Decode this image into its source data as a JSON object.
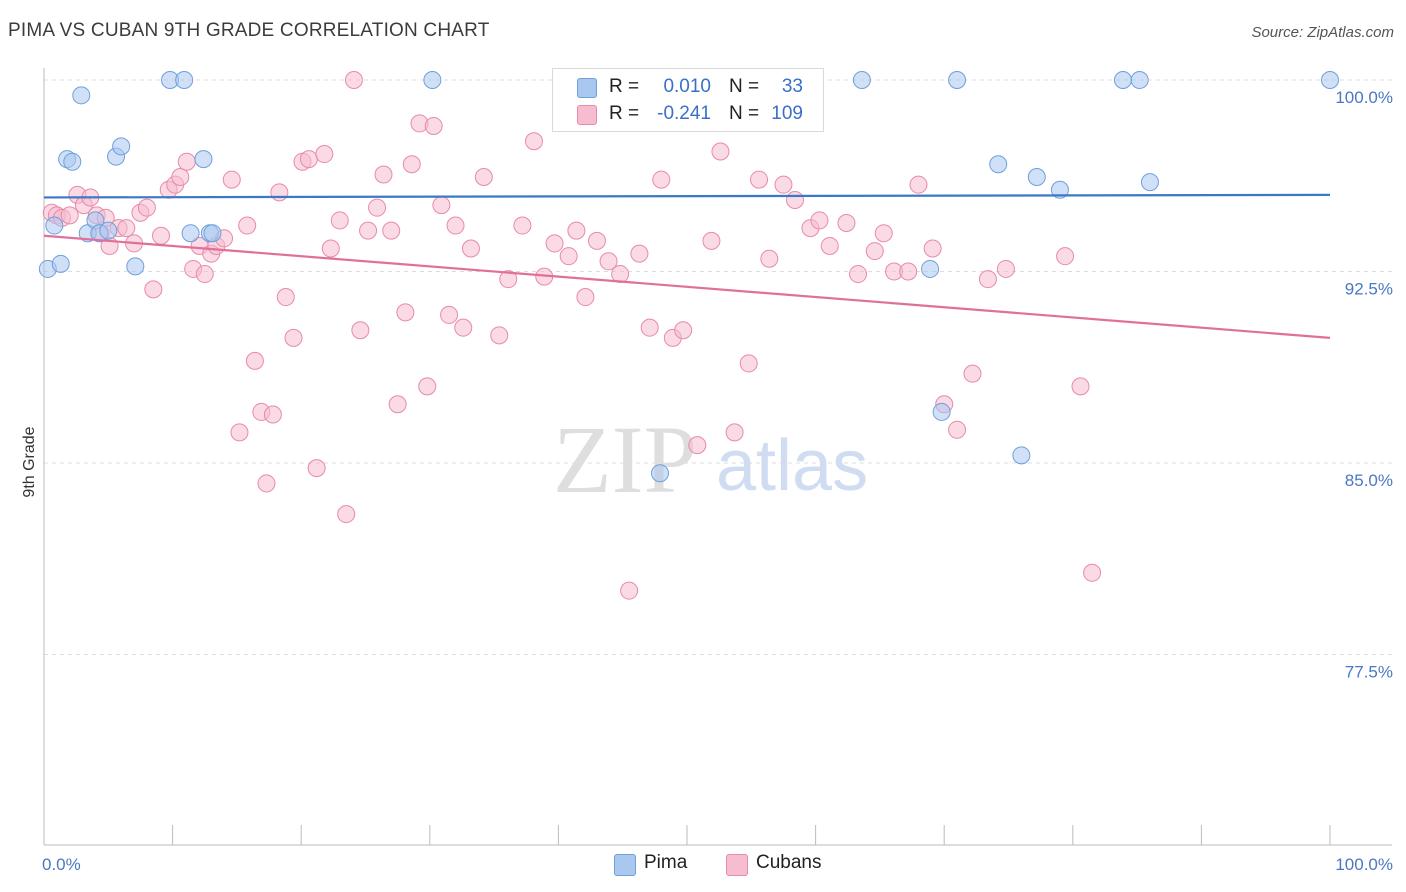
{
  "title": "PIMA VS CUBAN 9TH GRADE CORRELATION CHART",
  "source": "Source: ZipAtlas.com",
  "watermark": {
    "zip": "ZIP",
    "atlas": "atlas"
  },
  "legend": {
    "rows": [
      {
        "r_label": "R =",
        "r_value": "0.010",
        "n_label": "N =",
        "n_value": "33",
        "color": "#a9c8f0",
        "border": "#6f9fdc"
      },
      {
        "r_label": "R =",
        "r_value": "-0.241",
        "n_label": "N =",
        "n_value": "109",
        "color": "#f6bcd0",
        "border": "#e88aaa"
      }
    ]
  },
  "bottom_legend": [
    {
      "label": "Pima",
      "color": "#a9c8f0",
      "border": "#6f9fdc"
    },
    {
      "label": "Cubans",
      "color": "#f6bcd0",
      "border": "#e88aaa"
    }
  ],
  "chart_data": {
    "type": "scatter",
    "title": "PIMA VS CUBAN 9TH GRADE CORRELATION CHART",
    "xlabel": "",
    "ylabel": "9th Grade",
    "xlim": [
      0,
      100
    ],
    "ylim": [
      70.0,
      101.0
    ],
    "x_tick_labels": [
      {
        "value": 0,
        "label": "0.0%"
      },
      {
        "value": 100,
        "label": "100.0%"
      }
    ],
    "y_ticks": [
      {
        "value": 100.0,
        "label": "100.0%"
      },
      {
        "value": 92.5,
        "label": "92.5%"
      },
      {
        "value": 85.0,
        "label": "85.0%"
      },
      {
        "value": 77.5,
        "label": "77.5%"
      }
    ],
    "grid": true,
    "legend_position": "top-center",
    "series": [
      {
        "name": "Pima",
        "color": "#a9c8f0",
        "border": "#6f9fdc",
        "line_color": "#3b78c6",
        "trend": {
          "x0": 0,
          "y0": 95.4,
          "x1": 100,
          "y1": 95.5
        },
        "x": [
          0.3,
          0.8,
          1.3,
          1.8,
          2.2,
          2.9,
          3.4,
          4.0,
          4.3,
          5.0,
          5.6,
          6.0,
          7.1,
          9.8,
          10.9,
          11.4,
          12.4,
          12.9,
          13.1,
          30.2,
          47.9,
          63.6,
          68.9,
          69.8,
          71.0,
          74.2,
          76.0,
          77.2,
          79.0,
          83.9,
          85.2,
          86.0,
          100.0
        ],
        "y": [
          92.6,
          94.3,
          92.8,
          96.9,
          96.8,
          99.4,
          94.0,
          94.5,
          94.0,
          94.1,
          97.0,
          97.4,
          92.7,
          100.0,
          100.0,
          94.0,
          96.9,
          94.0,
          94.0,
          100.0,
          84.6,
          100.0,
          92.6,
          87.0,
          100.0,
          96.7,
          85.3,
          96.2,
          95.7,
          100.0,
          100.0,
          96.0,
          100.0
        ]
      },
      {
        "name": "Cubans",
        "color": "#f6bcd0",
        "border": "#e88aaa",
        "line_color": "#e0709a",
        "trend": {
          "x0": 0,
          "y0": 93.9,
          "x1": 100,
          "y1": 89.9
        },
        "x": [
          0.6,
          1.0,
          1.4,
          2.0,
          2.6,
          3.1,
          3.6,
          4.1,
          4.4,
          4.8,
          5.1,
          5.8,
          6.4,
          7.0,
          7.5,
          8.0,
          8.5,
          9.1,
          9.7,
          10.2,
          10.6,
          11.1,
          11.6,
          12.1,
          12.5,
          13.0,
          13.4,
          14.0,
          14.6,
          15.2,
          15.8,
          16.4,
          16.9,
          17.3,
          17.8,
          18.3,
          18.8,
          19.4,
          20.1,
          20.6,
          21.2,
          21.8,
          22.3,
          23.0,
          23.5,
          24.1,
          24.6,
          25.2,
          25.9,
          26.4,
          27.0,
          27.5,
          28.1,
          28.6,
          29.2,
          29.8,
          30.3,
          30.9,
          31.5,
          32.0,
          32.6,
          33.2,
          34.2,
          35.4,
          36.1,
          37.2,
          38.1,
          38.9,
          39.7,
          40.8,
          41.4,
          42.1,
          43.0,
          43.9,
          44.8,
          45.5,
          46.3,
          47.1,
          48.0,
          48.9,
          49.7,
          50.8,
          51.9,
          52.6,
          53.7,
          54.8,
          55.6,
          56.4,
          57.5,
          58.4,
          59.6,
          60.3,
          61.1,
          62.4,
          63.3,
          64.6,
          65.3,
          66.1,
          67.2,
          68.0,
          69.1,
          70.0,
          71.0,
          72.2,
          73.4,
          74.8,
          79.4,
          80.6,
          81.5
        ],
        "y": [
          94.8,
          94.7,
          94.6,
          94.7,
          95.5,
          95.1,
          95.4,
          94.7,
          94.0,
          94.6,
          93.5,
          94.2,
          94.2,
          93.6,
          94.8,
          95.0,
          91.8,
          93.9,
          95.7,
          95.9,
          96.2,
          96.8,
          92.6,
          93.5,
          92.4,
          93.2,
          93.5,
          93.8,
          96.1,
          86.2,
          94.3,
          89.0,
          87.0,
          84.2,
          86.9,
          95.6,
          91.5,
          89.9,
          96.8,
          96.9,
          84.8,
          97.1,
          93.4,
          94.5,
          83.0,
          100.0,
          90.2,
          94.1,
          95.0,
          96.3,
          94.1,
          87.3,
          90.9,
          96.7,
          98.3,
          88.0,
          98.2,
          95.1,
          90.8,
          94.3,
          90.3,
          93.4,
          96.2,
          90.0,
          92.2,
          94.3,
          97.6,
          92.3,
          93.6,
          93.1,
          94.1,
          91.5,
          93.7,
          92.9,
          92.4,
          80.0,
          93.2,
          90.3,
          96.1,
          89.9,
          90.2,
          85.7,
          93.7,
          97.2,
          86.2,
          88.9,
          96.1,
          93.0,
          95.9,
          95.3,
          94.2,
          94.5,
          93.5,
          94.4,
          92.4,
          93.3,
          94.0,
          92.5,
          92.5,
          95.9,
          93.4,
          87.3,
          86.3,
          88.5,
          92.2,
          92.6,
          93.1,
          88.0,
          80.7
        ]
      }
    ]
  }
}
